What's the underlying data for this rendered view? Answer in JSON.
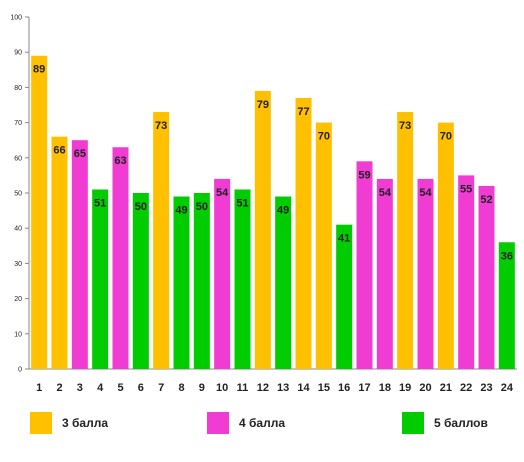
{
  "chart_data": {
    "type": "bar",
    "categories": [
      "1",
      "2",
      "3",
      "4",
      "5",
      "6",
      "7",
      "8",
      "9",
      "10",
      "11",
      "12",
      "13",
      "14",
      "15",
      "16",
      "17",
      "18",
      "19",
      "20",
      "21",
      "22",
      "23",
      "24"
    ],
    "values": [
      89,
      66,
      65,
      51,
      63,
      50,
      73,
      49,
      50,
      54,
      51,
      79,
      49,
      77,
      70,
      41,
      59,
      54,
      73,
      54,
      70,
      55,
      52,
      36
    ],
    "groups": [
      "3",
      "3",
      "4",
      "5",
      "4",
      "5",
      "3",
      "5",
      "5",
      "4",
      "5",
      "3",
      "5",
      "3",
      "3",
      "5",
      "4",
      "4",
      "3",
      "4",
      "3",
      "4",
      "4",
      "5"
    ],
    "ylim": [
      0,
      100
    ],
    "yticks": [
      "0",
      "10",
      "20",
      "30",
      "40",
      "50",
      "60",
      "70",
      "80",
      "90",
      "100"
    ],
    "grid": false,
    "legend_position": "bottom",
    "legend": [
      {
        "key": "3",
        "label": "3 балла",
        "color": "#FFC000"
      },
      {
        "key": "4",
        "label": "4 балла",
        "color": "#F03CD2"
      },
      {
        "key": "5",
        "label": "5 баллов",
        "color": "#00CC00"
      }
    ]
  }
}
